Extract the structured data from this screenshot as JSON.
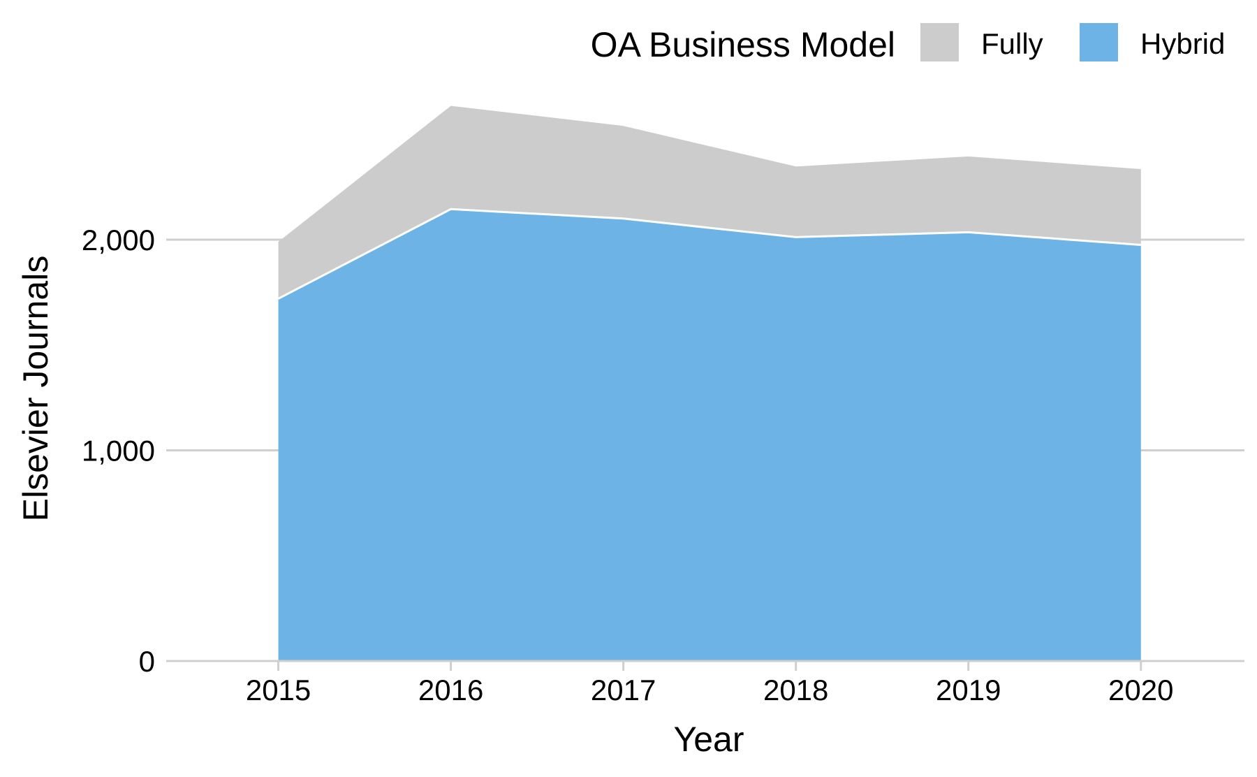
{
  "chart_data": {
    "type": "area",
    "stacked": true,
    "xlabel": "Year",
    "ylabel": "Elsevier Journals",
    "x": [
      2015,
      2016,
      2017,
      2018,
      2019,
      2020
    ],
    "x_tick_labels": [
      "2015",
      "2016",
      "2017",
      "2018",
      "2019",
      "2020"
    ],
    "y_ticks": [
      0,
      1000,
      2000
    ],
    "y_tick_labels": [
      "0",
      "1,000",
      "2,000"
    ],
    "ylim": [
      0,
      2640
    ],
    "xlim": [
      2014.35,
      2020.6
    ],
    "grid": "horizontal",
    "legend": {
      "title": "OA Business Model",
      "position": "top-right",
      "entries": [
        "Fully",
        "Hybrid"
      ]
    },
    "series": [
      {
        "name": "Hybrid",
        "values": [
          1720,
          2145,
          2100,
          2012,
          2035,
          1975
        ],
        "color": "#6db3e6"
      },
      {
        "name": "Fully",
        "values": [
          270,
          490,
          440,
          335,
          360,
          360
        ],
        "color": "#cccccc"
      }
    ]
  }
}
